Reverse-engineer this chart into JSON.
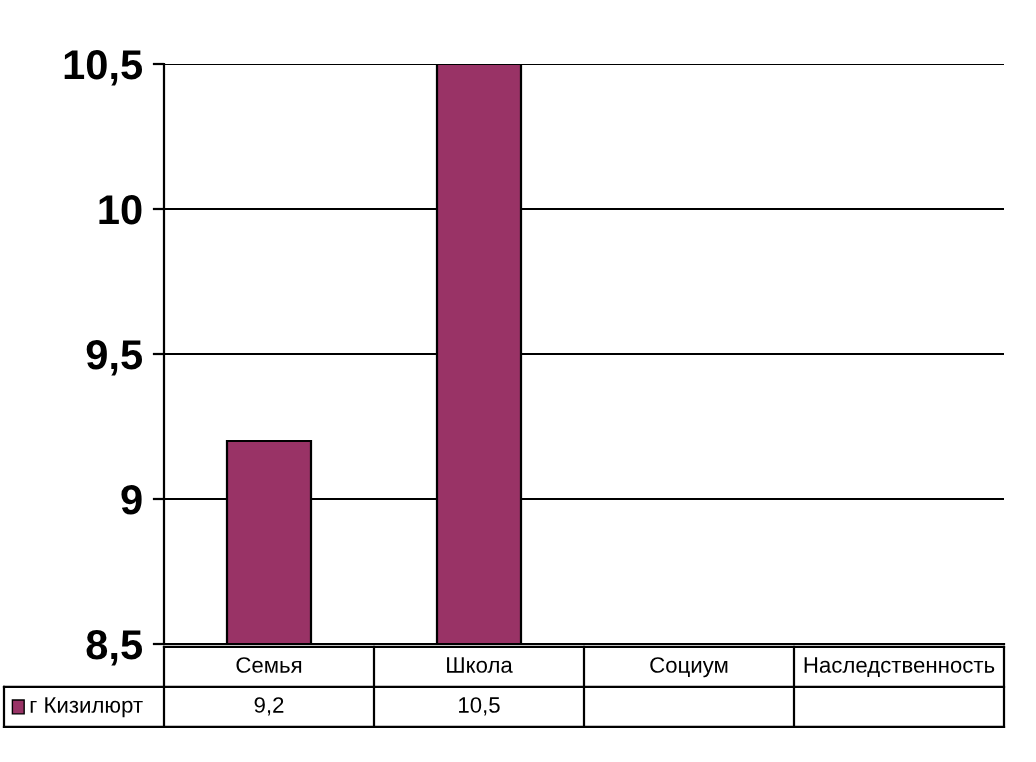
{
  "chart_data": {
    "type": "bar",
    "categories": [
      "Семья",
      "Школа",
      "Социум",
      "Наследственность"
    ],
    "series": [
      {
        "name": "г Кизилюрт",
        "color": "#993366",
        "values": [
          9.2,
          10.5,
          null,
          null
        ],
        "value_labels": [
          "9,2",
          "10,5",
          null,
          null
        ]
      }
    ],
    "ylim": [
      8.5,
      10.5
    ],
    "yticks": [
      {
        "value": 8.5,
        "label": "8,5"
      },
      9,
      {
        "value": 9.5,
        "label": "9,5"
      },
      10,
      {
        "value": 10.5,
        "label": "10,5"
      }
    ],
    "grid": "y",
    "legend": "bottom"
  }
}
